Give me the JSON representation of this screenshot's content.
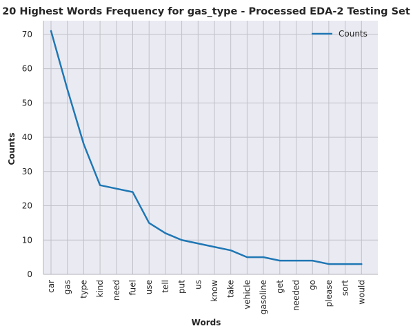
{
  "chart_data": {
    "type": "line",
    "title": "20 Highest Words Frequency for gas_type - Processed EDA-2 Testing Set",
    "xlabel": "Words",
    "ylabel": "Counts",
    "categories": [
      "car",
      "gas",
      "type",
      "kind",
      "need",
      "fuel",
      "use",
      "tell",
      "put",
      "us",
      "know",
      "take",
      "vehicle",
      "gasoline",
      "get",
      "needed",
      "go",
      "please",
      "sort",
      "would"
    ],
    "series": [
      {
        "name": "Counts",
        "values": [
          71,
          54,
          38,
          26,
          25,
          24,
          15,
          12,
          10,
          9,
          8,
          7,
          5,
          5,
          4,
          4,
          4,
          3,
          3,
          3
        ],
        "color": "#1f77b4"
      }
    ],
    "ylim": [
      0,
      74
    ],
    "yticks": [
      0,
      10,
      20,
      30,
      40,
      50,
      60,
      70
    ],
    "grid": true,
    "legend_position": "top-right",
    "colors": {
      "plot_background": "#eaeaf2",
      "grid": "#c0c0c8",
      "axis": "#b0b0b8"
    }
  }
}
